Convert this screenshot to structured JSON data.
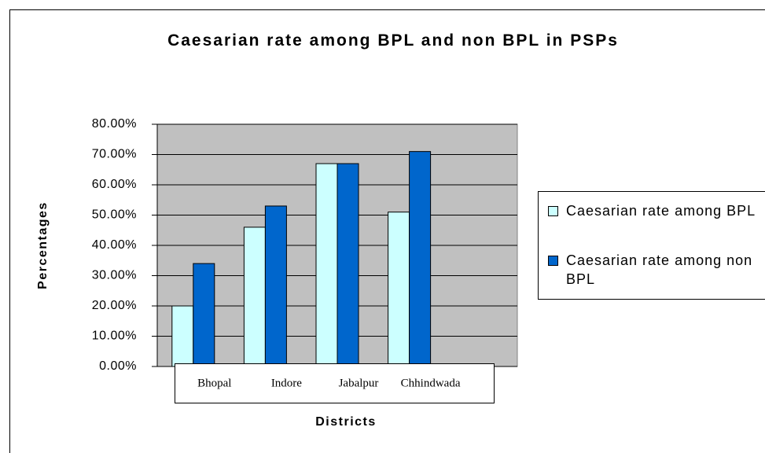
{
  "chart_data": {
    "type": "bar",
    "title": "Caesarian rate among BPL and non BPL in PSPs",
    "x_label": "Districts",
    "y_label": "Percentages",
    "categories": [
      "Bhopal",
      "Indore",
      "Jabalpur",
      "Chhindwada",
      null
    ],
    "series": [
      {
        "name": "Caesarian rate among BPL",
        "color": "#ccffff",
        "values": [
          20,
          46,
          67,
          51,
          null
        ]
      },
      {
        "name": "Caesarian rate among non BPL",
        "color": "#0066cc",
        "values": [
          34,
          53,
          67,
          71,
          null
        ]
      }
    ],
    "ylim": [
      0,
      80
    ],
    "yticks": [
      {
        "value": 0,
        "label": "0.00%"
      },
      {
        "value": 10,
        "label": "10.00%"
      },
      {
        "value": 20,
        "label": "20.00%"
      },
      {
        "value": 30,
        "label": "30.00%"
      },
      {
        "value": 40,
        "label": "40.00%"
      },
      {
        "value": 50,
        "label": "50.00%"
      },
      {
        "value": 60,
        "label": "60.00%"
      },
      {
        "value": 70,
        "label": "70.00%"
      },
      {
        "value": 80,
        "label": "80.00%"
      }
    ],
    "grid": true,
    "legend": "right"
  }
}
